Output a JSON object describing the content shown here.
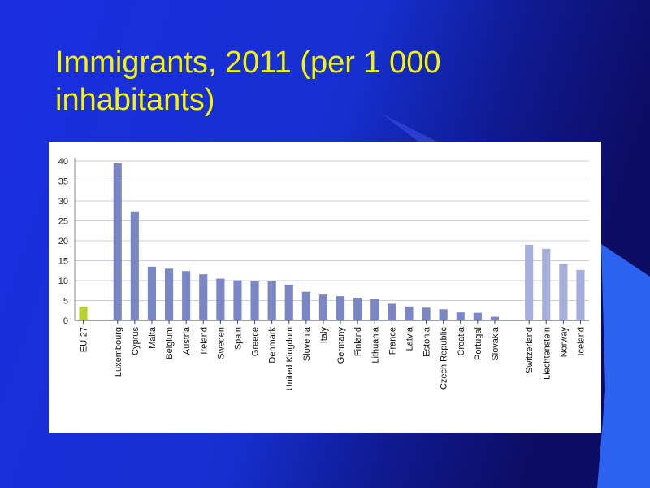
{
  "slide": {
    "title": "Immigrants, 2011 (per 1 000 inhabitants)",
    "colors": {
      "title": "#f5f500",
      "background_dark": "#0c0c62",
      "background_mid": "#1a2ee0",
      "accent_light_blue": "#2b62f0"
    }
  },
  "chart_data": {
    "type": "bar",
    "title": "",
    "xlabel": "",
    "ylabel": "",
    "ylim": [
      0,
      40
    ],
    "yticks": [
      0,
      5,
      10,
      15,
      20,
      25,
      30,
      35,
      40
    ],
    "grid": true,
    "legend": "none",
    "groups": [
      {
        "name": "eu-aggregate",
        "color": "#b7d136",
        "categories": [
          "EU-27"
        ],
        "values": [
          3.5
        ]
      },
      {
        "name": "eu-member-states",
        "color": "#7b86c5",
        "categories": [
          "Luxembourg",
          "Cyprus",
          "Malta",
          "Belgium",
          "Austria",
          "Ireland",
          "Sweden",
          "Spain",
          "Greece",
          "Denmark",
          "United Kingdom",
          "Slovenia",
          "Italy",
          "Germany",
          "Finland",
          "Lithuania",
          "France",
          "Latvia",
          "Estonia",
          "Czech Republic",
          "Croatia",
          "Portugal",
          "Slovakia"
        ],
        "values": [
          39.4,
          27.2,
          13.5,
          13.0,
          12.4,
          11.6,
          10.5,
          10.1,
          9.8,
          9.8,
          9.0,
          7.2,
          6.5,
          6.1,
          5.7,
          5.3,
          4.2,
          3.5,
          3.2,
          2.8,
          2.0,
          1.9,
          0.9
        ]
      },
      {
        "name": "efta-countries",
        "color": "#a6aedb",
        "categories": [
          "Switzerland",
          "Liechtenstein",
          "Norway",
          "Iceland"
        ],
        "values": [
          19.0,
          18.0,
          14.2,
          12.7
        ]
      }
    ]
  }
}
